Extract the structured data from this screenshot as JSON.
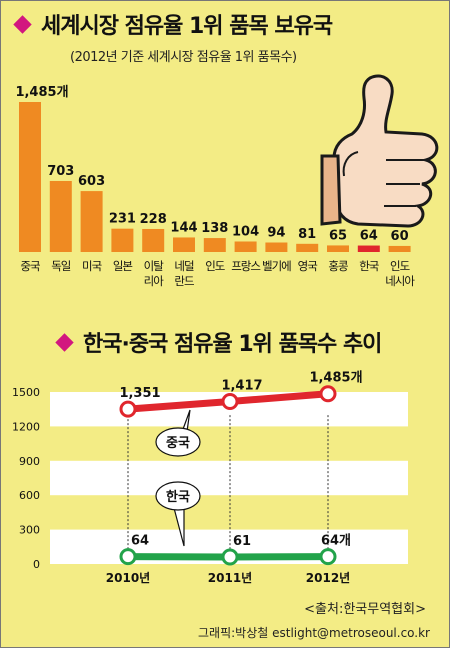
{
  "section1": {
    "title": "세계시장 점유율 1위 품목 보유국",
    "subtitle": "(2012년 기준 세계시장 점유율 1위 품목수)"
  },
  "section2": {
    "title": "한국·중국 점유율 1위 품목수 추이"
  },
  "footer": {
    "source": "<출처:한국무역협회>",
    "credit": "그래픽:박상철 estlight@metroseoul.co.kr"
  },
  "colors": {
    "bar": "#ef8a22",
    "bar_highlight": "#e0262d",
    "china_line": "#e0262d",
    "korea_line": "#22a34a",
    "background": "#f3ec85",
    "accent": "#d2177f"
  },
  "chart_data": [
    {
      "type": "bar",
      "categories": [
        "중국",
        "독일",
        "미국",
        "일본",
        "이탈리아",
        "네덜란드",
        "인도",
        "프랑스",
        "벨기에",
        "영국",
        "홍콩",
        "한국",
        "인도네시아"
      ],
      "category_lines": [
        [
          "중국"
        ],
        [
          "독일"
        ],
        [
          "미국"
        ],
        [
          "일본"
        ],
        [
          "이탈",
          "리아"
        ],
        [
          "네덜",
          "란드"
        ],
        [
          "인도"
        ],
        [
          "프랑스"
        ],
        [
          "벨기에"
        ],
        [
          "영국"
        ],
        [
          "홍콩"
        ],
        [
          "한국"
        ],
        [
          "인도",
          "네시아"
        ]
      ],
      "values": [
        1485,
        703,
        603,
        231,
        228,
        144,
        138,
        104,
        94,
        81,
        65,
        64,
        60
      ],
      "value_labels": [
        "1,485개",
        "703",
        "603",
        "231",
        "228",
        "144",
        "138",
        "104",
        "94",
        "81",
        "65",
        "64",
        "60"
      ],
      "highlight": "한국",
      "ylim": [
        0,
        1485
      ]
    },
    {
      "type": "line",
      "categories": [
        "2010년",
        "2011년",
        "2012년"
      ],
      "series": [
        {
          "name": "중국",
          "values": [
            1351,
            1417,
            1485
          ],
          "labels": [
            "1,351",
            "1,417",
            "1,485개"
          ]
        },
        {
          "name": "한국",
          "values": [
            64,
            61,
            64
          ],
          "labels": [
            "64",
            "61",
            "64개"
          ]
        }
      ],
      "yticks": [
        "0",
        "300",
        "600",
        "900",
        "1200",
        "1500"
      ],
      "ylim": [
        0,
        1500
      ],
      "grid": "alternating-bands"
    }
  ]
}
